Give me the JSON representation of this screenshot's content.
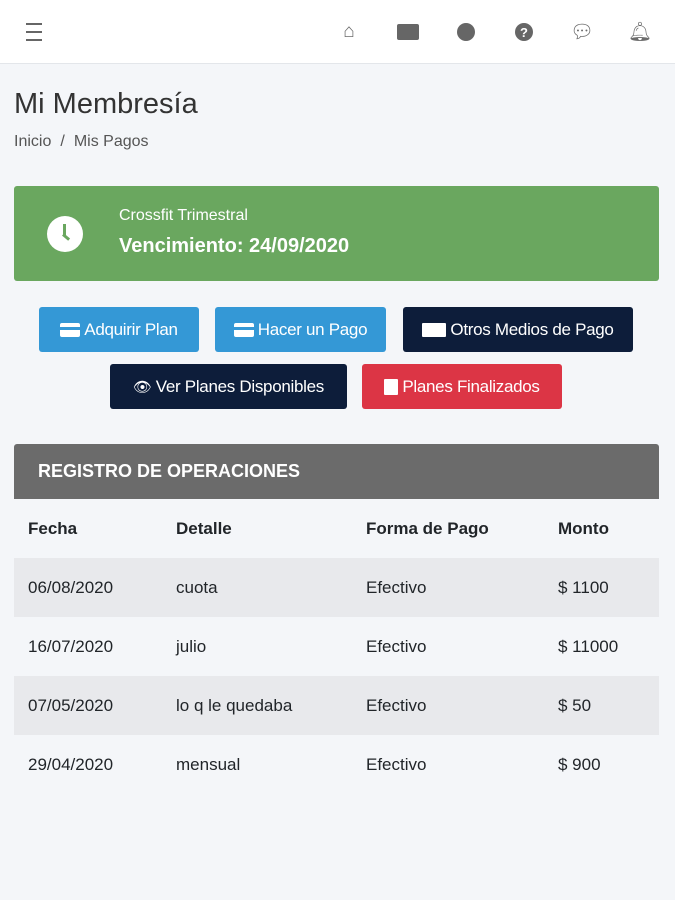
{
  "header": {
    "icons": [
      "menu-icon",
      "home-icon",
      "id-card-icon",
      "user-icon",
      "help-icon",
      "chat-icon",
      "bell-icon"
    ]
  },
  "page": {
    "title": "Mi Membresía",
    "breadcrumb": [
      "Inicio",
      "Mis Pagos"
    ],
    "breadcrumb_sep": "/"
  },
  "membership": {
    "plan": "Crossfit Trimestral",
    "expiry": "Vencimiento: 24/09/2020",
    "color": "#6aa75f"
  },
  "buttons": {
    "adquirir": "Adquirir Plan",
    "pago": "Hacer un Pago",
    "otros": "Otros Medios de Pago",
    "ver": "Ver Planes Disponibles",
    "finalizados": "Planes Finalizados"
  },
  "colors": {
    "info": "#3498d6",
    "dark": "#0d1d3a",
    "danger": "#dc3545"
  },
  "operations": {
    "title": "REGISTRO DE OPERACIONES",
    "headers": [
      "Fecha",
      "Detalle",
      "Forma de Pago",
      "Monto"
    ],
    "rows": [
      [
        "06/08/2020",
        "cuota",
        "Efectivo",
        "$ 1100"
      ],
      [
        "16/07/2020",
        "julio",
        "Efectivo",
        "$ 11000"
      ],
      [
        "07/05/2020",
        "lo q le quedaba",
        "Efectivo",
        "$ 50"
      ],
      [
        "29/04/2020",
        "mensual",
        "Efectivo",
        "$ 900"
      ]
    ]
  }
}
